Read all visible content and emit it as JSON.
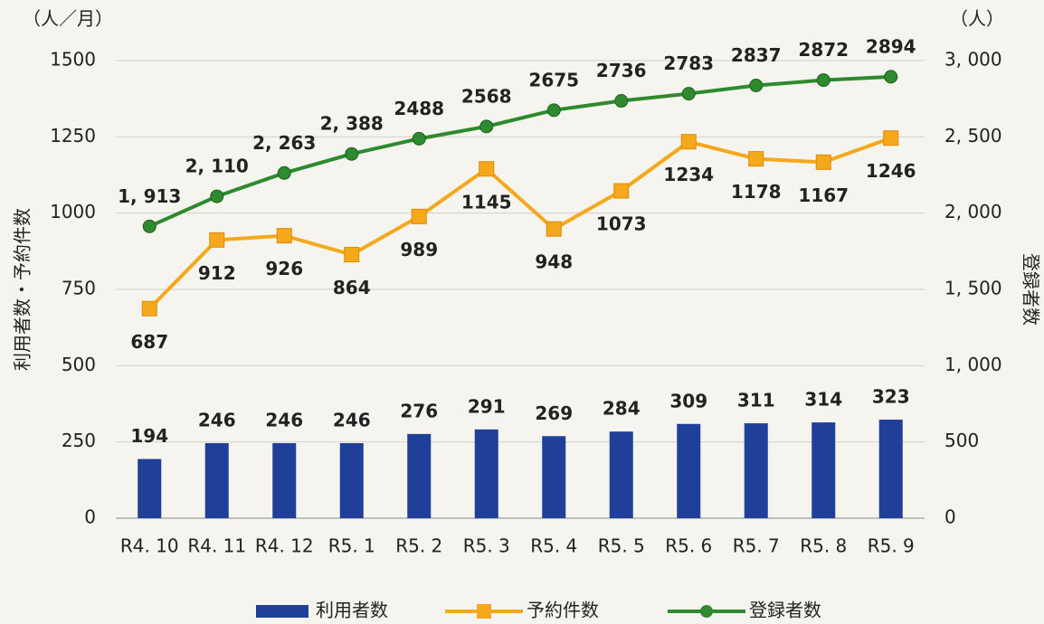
{
  "chart_data": {
    "type": "bar-line",
    "y_unit": "（人／月）",
    "y2_unit": "（人）",
    "ylabel": "利用者数・予約件数",
    "y2label": "登録者数",
    "categories": [
      "R4. 10",
      "R4. 11",
      "R4. 12",
      "R5. 1",
      "R5. 2",
      "R5. 3",
      "R5. 4",
      "R5. 5",
      "R5. 6",
      "R5. 7",
      "R5. 8",
      "R5. 9"
    ],
    "series": [
      {
        "name": "利用者数",
        "type": "bar",
        "color": "#1f3f99",
        "axis": "y",
        "values": [
          194,
          246,
          246,
          246,
          276,
          291,
          269,
          284,
          309,
          311,
          314,
          323
        ]
      },
      {
        "name": "予約件数",
        "type": "line",
        "marker": "square",
        "color": "#f5a81c",
        "axis": "y",
        "values": [
          687,
          912,
          926,
          864,
          989,
          1145,
          948,
          1073,
          1234,
          1178,
          1167,
          1246
        ]
      },
      {
        "name": "登録者数",
        "type": "line",
        "marker": "circle",
        "color": "#2e8a2e",
        "axis": "y2",
        "values": [
          1913,
          2110,
          2263,
          2388,
          2488,
          2568,
          2675,
          2736,
          2783,
          2837,
          2872,
          2894
        ],
        "value_labels": [
          "1, 913",
          "2, 110",
          "2, 263",
          "2, 388",
          "2488",
          "2568",
          "2675",
          "2736",
          "2783",
          "2837",
          "2872",
          "2894"
        ]
      }
    ],
    "ylim": [
      0,
      1500
    ],
    "yticks": [
      0,
      250,
      500,
      750,
      1000,
      1250,
      1500
    ],
    "y2lim": [
      0,
      3000
    ],
    "y2ticks": [
      0,
      500,
      {
        "value": 1000,
        "label": "1, 000"
      },
      {
        "value": 1500,
        "label": "1, 500"
      },
      {
        "value": 2000,
        "label": "2, 000"
      },
      {
        "value": 2500,
        "label": "2, 500"
      },
      {
        "value": 3000,
        "label": "3, 000"
      }
    ],
    "grid": true,
    "legend": "bottom"
  }
}
